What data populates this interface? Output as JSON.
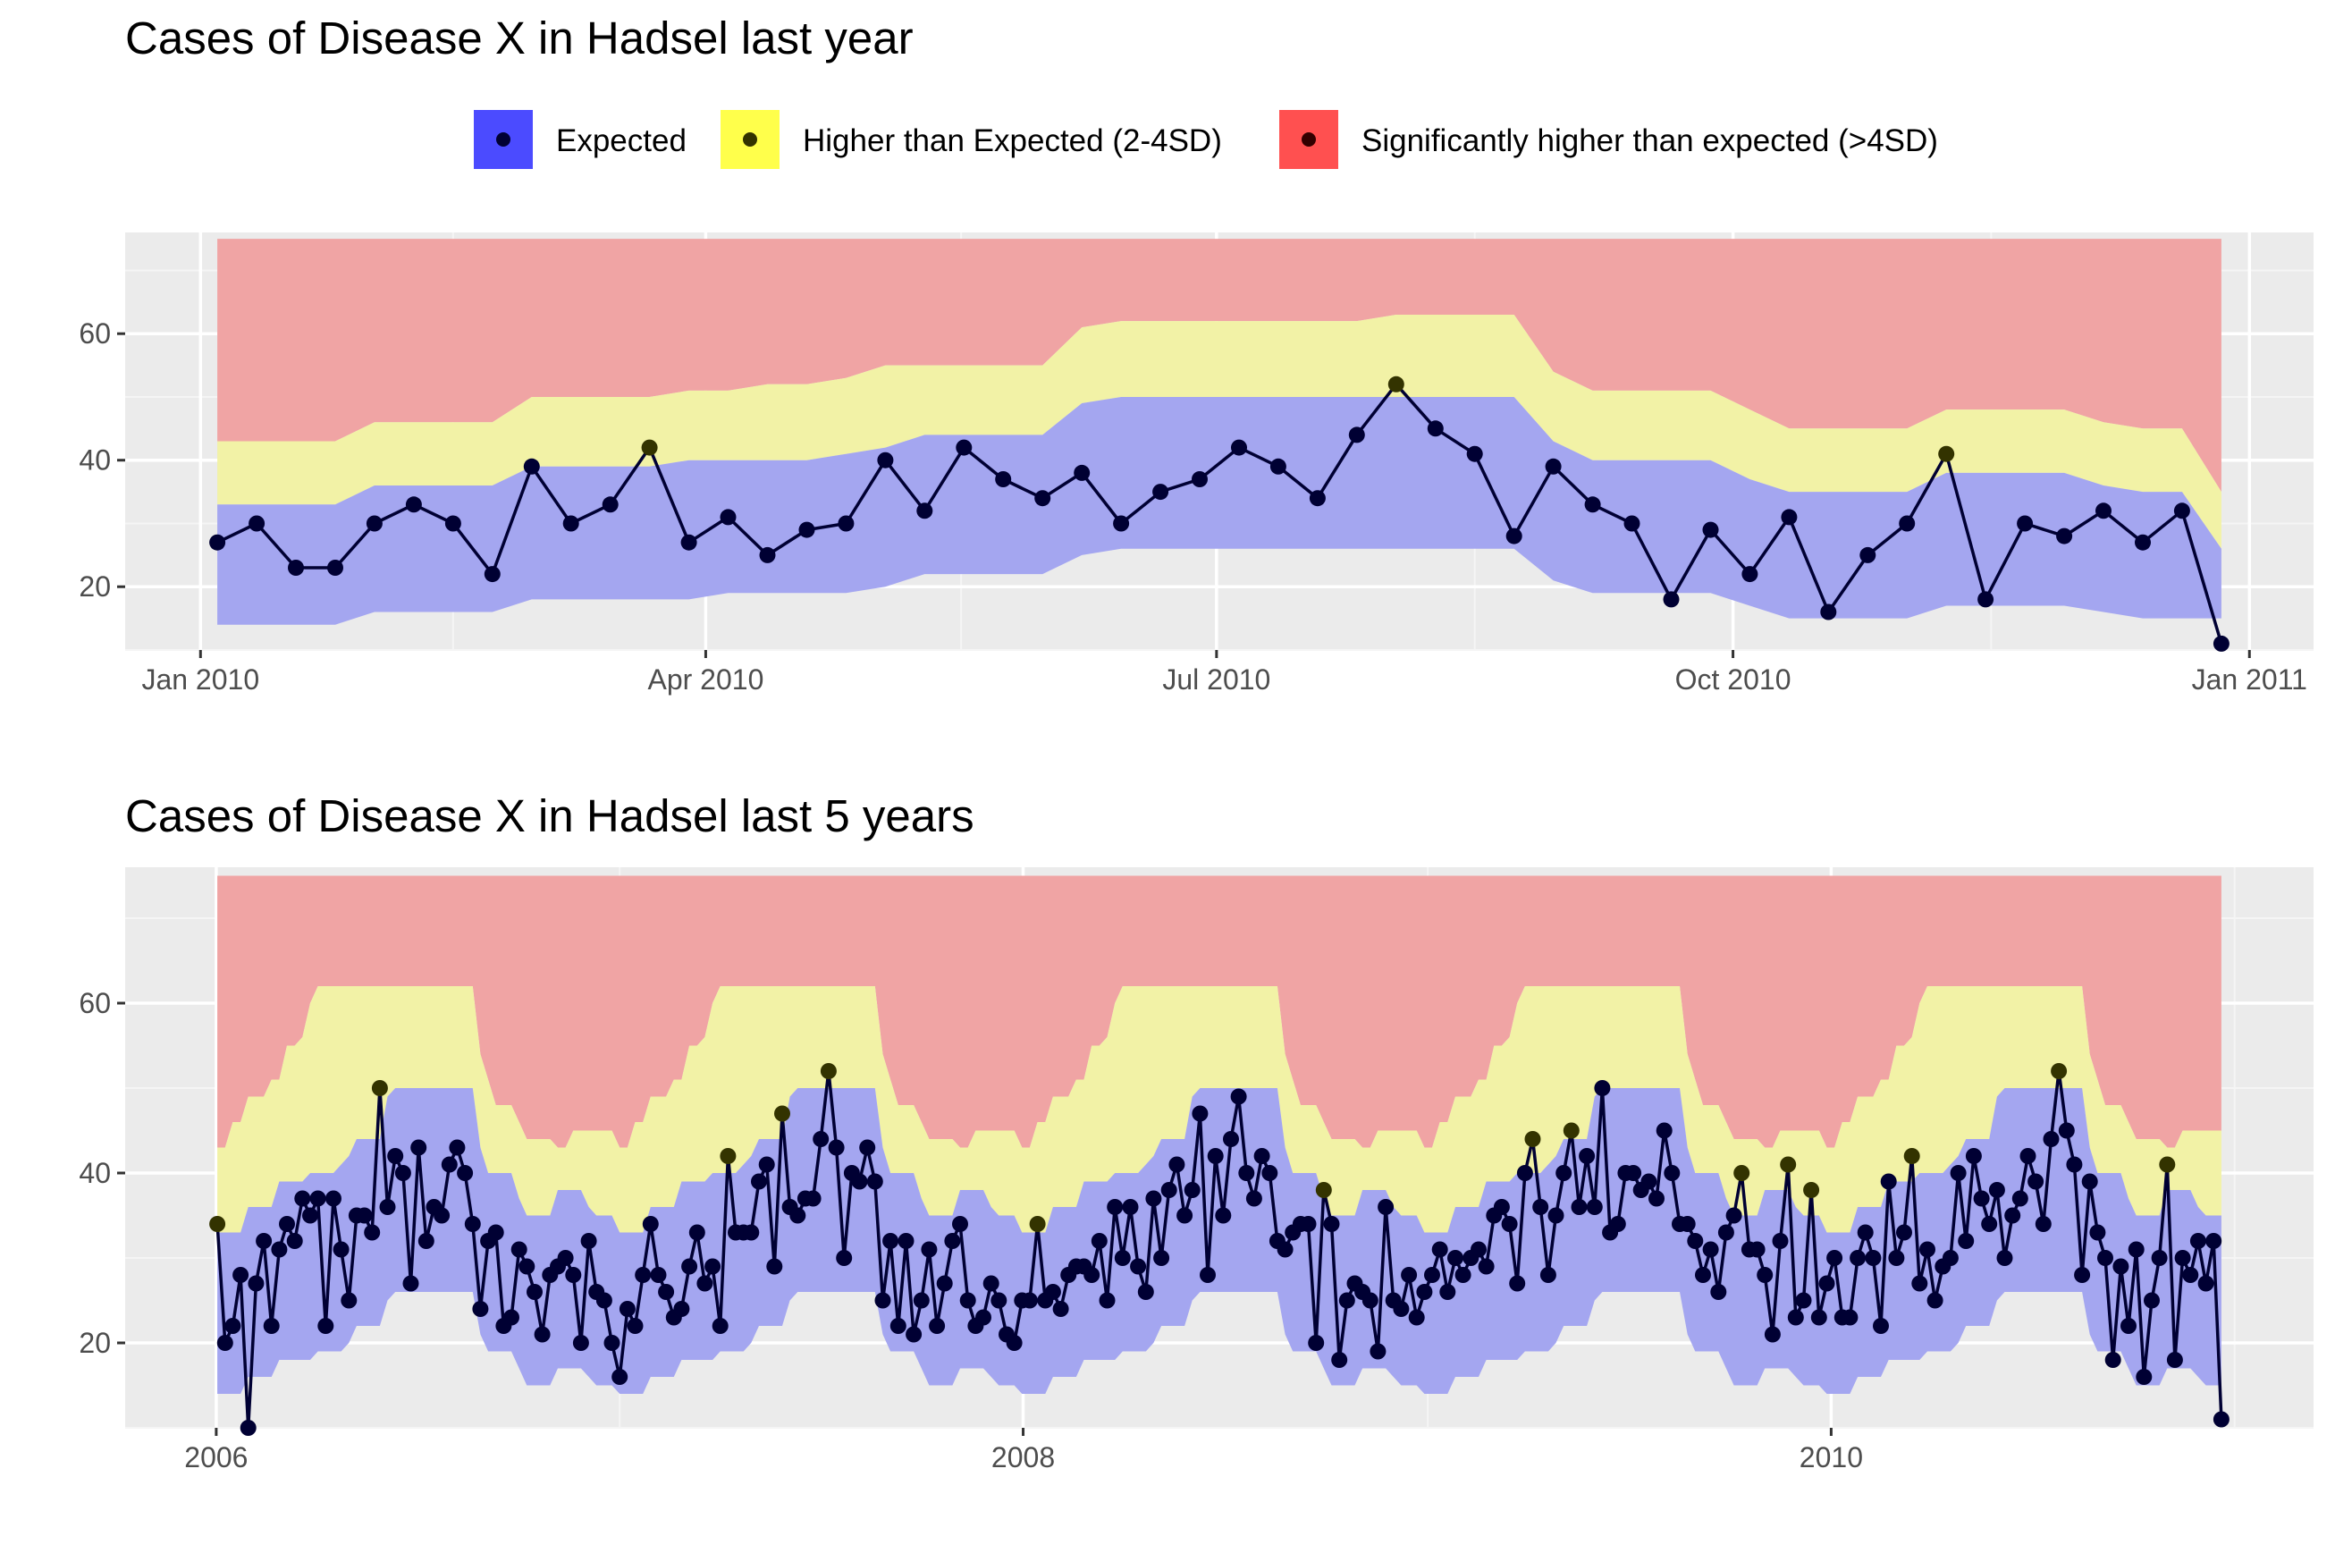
{
  "colors": {
    "panel_bg": "#EBEBEB",
    "grid_major": "#FFFFFF",
    "band_expected": "#A4A6F0",
    "band_higher": "#F2F2A6",
    "band_significant": "#F0A4A4",
    "key_expected": "#4B4BFF",
    "key_higher": "#FFFF4B",
    "key_significant": "#FF5050",
    "point_expected": "#000033",
    "point_higher": "#333300",
    "point_significant": "#330000",
    "line": "#000033"
  },
  "legend": {
    "items": [
      {
        "label": "Expected",
        "icon": "dot-on-blue-square"
      },
      {
        "label": "Higher than Expected (2-4SD)",
        "icon": "dot-on-yellow-square"
      },
      {
        "label": "Significantly higher than expected (>4SD)",
        "icon": "dot-on-red-square"
      }
    ]
  },
  "chart_data": [
    {
      "type": "line",
      "title": "Cases of Disease X in Hadsel last year",
      "xlabel": "",
      "ylabel": "",
      "x_ticks": [
        "Jan 2010",
        "Apr 2010",
        "Jul 2010",
        "Oct 2010",
        "Jan 2011"
      ],
      "y_ticks": [
        20,
        40,
        60
      ],
      "ylim": [
        10,
        76
      ],
      "grid": true,
      "legend_position": "top",
      "x_start": "2010-01-04",
      "x_step_days": 7,
      "series": [
        {
          "values": [
            27,
            30,
            23,
            23,
            30,
            33,
            30,
            22,
            39,
            30,
            33,
            42,
            27,
            31,
            25,
            29,
            30,
            40,
            32,
            42,
            37,
            34,
            38,
            30,
            35,
            37,
            42,
            39,
            34,
            44,
            52,
            45,
            41,
            28,
            39,
            33,
            30,
            18,
            29,
            22,
            31,
            16,
            25,
            30,
            41,
            18,
            30,
            28,
            32,
            27,
            32,
            11
          ]
        }
      ],
      "bands": {
        "lower": [
          14,
          14,
          14,
          14,
          16,
          16,
          16,
          16,
          18,
          18,
          18,
          18,
          18,
          19,
          19,
          19,
          19,
          20,
          22,
          22,
          22,
          22,
          25,
          26,
          26,
          26,
          26,
          26,
          26,
          26,
          26,
          26,
          26,
          26,
          21,
          19,
          19,
          19,
          19,
          17,
          15,
          15,
          15,
          15,
          17,
          17,
          17,
          17,
          16,
          15,
          15,
          15
        ],
        "expected_upper": [
          33,
          33,
          33,
          33,
          36,
          36,
          36,
          36,
          39,
          39,
          39,
          39,
          40,
          40,
          40,
          40,
          41,
          42,
          44,
          44,
          44,
          44,
          49,
          50,
          50,
          50,
          50,
          50,
          50,
          50,
          50,
          50,
          50,
          50,
          43,
          40,
          40,
          40,
          40,
          37,
          35,
          35,
          35,
          35,
          38,
          38,
          38,
          38,
          36,
          35,
          35,
          26
        ],
        "higher_upper": [
          43,
          43,
          43,
          43,
          46,
          46,
          46,
          46,
          50,
          50,
          50,
          50,
          51,
          51,
          52,
          52,
          53,
          55,
          55,
          55,
          55,
          55,
          61,
          62,
          62,
          62,
          62,
          62,
          62,
          62,
          63,
          63,
          63,
          63,
          54,
          51,
          51,
          51,
          51,
          48,
          45,
          45,
          45,
          45,
          48,
          48,
          48,
          48,
          46,
          45,
          45,
          35
        ],
        "significant_upper": 75
      }
    },
    {
      "type": "line",
      "title": "Cases of Disease X in Hadsel last 5 years",
      "xlabel": "",
      "ylabel": "",
      "x_ticks": [
        "2006",
        "2008",
        "2010"
      ],
      "y_ticks": [
        20,
        40,
        60
      ],
      "ylim": [
        10,
        76
      ],
      "grid": true,
      "legend_position": "top",
      "x_start": "2006-01-02",
      "x_step_days": 7,
      "series": [
        {
          "values": [
            34,
            20,
            22,
            28,
            10,
            27,
            32,
            22,
            31,
            34,
            32,
            37,
            35,
            37,
            22,
            37,
            31,
            25,
            35,
            35,
            33,
            50,
            36,
            42,
            40,
            27,
            43,
            32,
            36,
            35,
            41,
            43,
            40,
            34,
            24,
            32,
            33,
            22,
            23,
            31,
            29,
            26,
            21,
            28,
            29,
            30,
            28,
            20,
            32,
            26,
            25,
            20,
            16,
            24,
            22,
            28,
            34,
            28,
            26,
            23,
            24,
            29,
            33,
            27,
            29,
            22,
            42,
            33,
            33,
            33,
            39,
            41,
            29,
            47,
            36,
            35,
            37,
            37,
            44,
            52,
            43,
            30,
            40,
            39,
            43,
            39,
            25,
            32,
            22,
            32,
            21,
            25,
            31,
            22,
            27,
            32,
            34,
            25,
            22,
            23,
            27,
            25,
            21,
            20,
            25,
            25,
            34,
            25,
            26,
            24,
            28,
            29,
            29,
            28,
            32,
            25,
            36,
            30,
            36,
            29,
            26,
            37,
            30,
            38,
            41,
            35,
            38,
            47,
            28,
            42,
            35,
            44,
            49,
            40,
            37,
            42,
            40,
            32,
            31,
            33,
            34,
            34,
            20,
            38,
            34,
            18,
            25,
            27,
            26,
            25,
            19,
            36,
            25,
            24,
            28,
            23,
            26,
            28,
            31,
            26,
            30,
            28,
            30,
            31,
            29,
            35,
            36,
            34,
            27,
            40,
            44,
            36,
            28,
            35,
            40,
            45,
            36,
            42,
            36,
            50,
            33,
            34,
            40,
            40,
            38,
            39,
            37,
            45,
            40,
            34,
            34,
            32,
            28,
            31,
            26,
            33,
            35,
            40,
            31,
            31,
            28,
            21,
            32,
            41,
            23,
            25,
            38,
            23,
            27,
            30,
            23,
            23,
            30,
            33,
            30,
            22,
            39,
            30,
            33,
            42,
            27,
            31,
            25,
            29,
            30,
            40,
            32,
            42,
            37,
            34,
            38,
            30,
            35,
            37,
            42,
            39,
            34,
            44,
            52,
            45,
            41,
            28,
            39,
            33,
            30,
            18,
            29,
            22,
            31,
            16,
            25,
            30,
            41,
            18,
            30,
            28,
            32,
            27,
            32,
            11
          ]
        }
      ],
      "bands": {
        "year_lower": [
          14,
          14,
          14,
          14,
          16,
          16,
          16,
          16,
          18,
          18,
          18,
          18,
          18,
          19,
          19,
          19,
          19,
          20,
          22,
          22,
          22,
          22,
          25,
          26,
          26,
          26,
          26,
          26,
          26,
          26,
          26,
          26,
          26,
          26,
          21,
          19,
          19,
          19,
          19,
          17,
          15,
          15,
          15,
          15,
          17,
          17,
          17,
          17,
          16,
          15,
          15,
          15
        ],
        "year_expected_upper": [
          33,
          33,
          33,
          33,
          36,
          36,
          36,
          36,
          39,
          39,
          39,
          39,
          40,
          40,
          40,
          40,
          41,
          42,
          44,
          44,
          44,
          44,
          49,
          50,
          50,
          50,
          50,
          50,
          50,
          50,
          50,
          50,
          50,
          50,
          43,
          40,
          40,
          40,
          40,
          37,
          35,
          35,
          35,
          35,
          38,
          38,
          38,
          38,
          36,
          35,
          35,
          35
        ],
        "year_higher_upper": [
          43,
          43,
          46,
          46,
          49,
          49,
          49,
          51,
          51,
          55,
          55,
          56,
          60,
          62,
          62,
          62,
          62,
          62,
          62,
          62,
          62,
          62,
          62,
          62,
          62,
          62,
          62,
          62,
          62,
          62,
          62,
          62,
          62,
          62,
          54,
          51,
          48,
          48,
          48,
          46,
          44,
          44,
          44,
          44,
          43,
          43,
          45,
          45,
          45,
          45,
          45,
          45
        ],
        "significant_upper": 75
      }
    }
  ]
}
